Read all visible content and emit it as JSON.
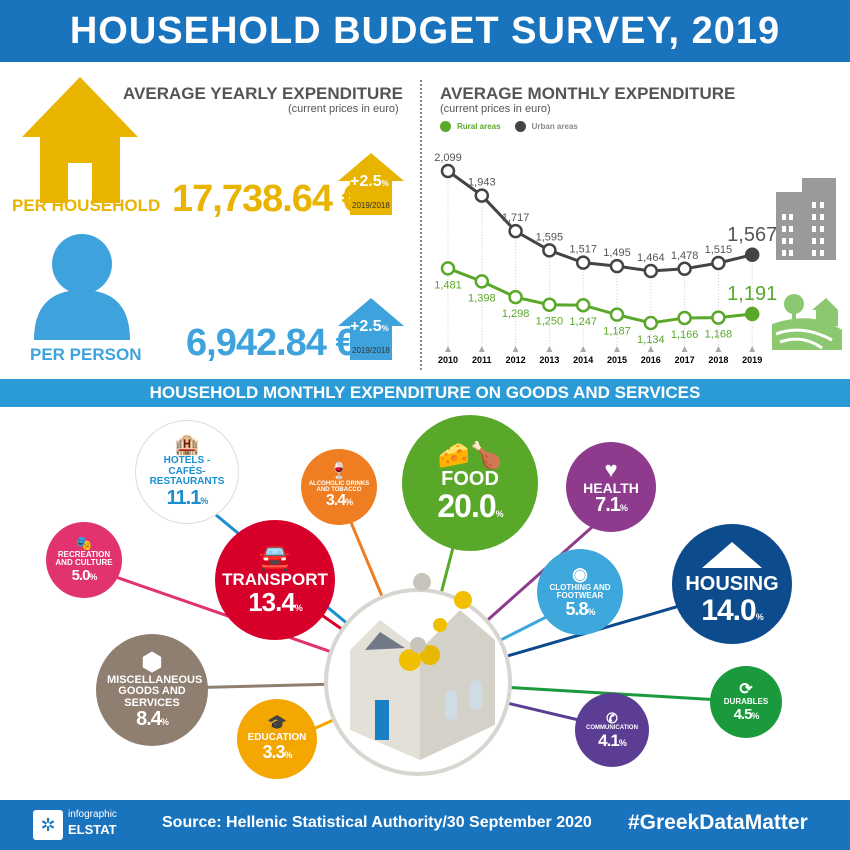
{
  "title": "HOUSEHOLD BUDGET SURVEY, 2019",
  "yearly": {
    "heading": "AVERAGE YEARLY EXPENDITURE",
    "sub": "(current prices in euro)",
    "household": {
      "label": "PER HOUSEHOLD",
      "value": "17,738.64 €",
      "change": "+2.5",
      "change_unit": "%",
      "period": "2019/2018"
    },
    "person": {
      "label": "PER PERSON",
      "value": "6,942.84 €",
      "change": "+2.5",
      "change_unit": "%",
      "period": "2019/2018"
    }
  },
  "chart_data": {
    "type": "line",
    "title": "AVERAGE MONTHLY EXPENDITURE",
    "subtitle": "(current prices in euro)",
    "x": [
      "2010",
      "2011",
      "2012",
      "2013",
      "2014",
      "2015",
      "2016",
      "2017",
      "2018",
      "2019"
    ],
    "series": [
      {
        "name": "Rural areas",
        "color": "#5aa82a",
        "values": [
          1481,
          1398,
          1298,
          1250,
          1247,
          1187,
          1134,
          1166,
          1168,
          1191
        ],
        "labels": [
          "1,481",
          "1,398",
          "1,298",
          "1,250",
          "1,247",
          "1,187",
          "1,134",
          "1,166",
          "1,168",
          "1,191"
        ]
      },
      {
        "name": "Urban areas",
        "color": "#444444",
        "values": [
          2099,
          1943,
          1717,
          1595,
          1517,
          1495,
          1464,
          1478,
          1515,
          1567
        ],
        "labels": [
          "2,099",
          "1,943",
          "1,717",
          "1,595",
          "1,517",
          "1,495",
          "1,464",
          "1,478",
          "1,515",
          "1,567"
        ]
      }
    ]
  },
  "section_title": "HOUSEHOLD MONTHLY EXPENDITURE ON GOODS AND SERVICES",
  "categories": {
    "hotels": {
      "label": "HOTELS -CAFÉS- RESTAURANTS",
      "pct": "11.1",
      "color": "#1a8fd0"
    },
    "alcohol": {
      "label": "ALCOHOLIC DRINKS AND TOBACCO",
      "pct": "3.4",
      "color": "#ef7d22"
    },
    "food": {
      "label": "FOOD",
      "pct": "20.0",
      "color": "#5aa82a"
    },
    "health": {
      "label": "HEALTH",
      "pct": "7.1",
      "color": "#8e3b8d"
    },
    "recreation": {
      "label": "RECREATION AND CULTURE",
      "pct": "5.0",
      "color": "#e0336f"
    },
    "transport": {
      "label": "TRANSPORT",
      "pct": "13.4",
      "color": "#d7002b"
    },
    "clothing": {
      "label": "CLOTHING AND FOOTWEAR",
      "pct": "5.8",
      "color": "#3ea8dc"
    },
    "housing": {
      "label": "HOUSING",
      "pct": "14.0",
      "color": "#0d4c8c"
    },
    "misc": {
      "label": "MISCELLANEOUS GOODS AND SERVICES",
      "pct": "8.4",
      "color": "#8f7f70"
    },
    "education": {
      "label": "EDUCATION",
      "pct": "3.3",
      "color": "#f3a700"
    },
    "communication": {
      "label": "COMMUNICATION",
      "pct": "4.1",
      "color": "#5b3e93"
    },
    "durables": {
      "label": "DURABLES",
      "pct": "4.5",
      "color": "#1a9a3d"
    }
  },
  "pct_sign": "%",
  "footer": {
    "logo_top": "infographic",
    "logo_bottom": "ELSTAT",
    "source": "Source: Hellenic Statistical Authority/30 September 2020",
    "hashtag": "#GreekDataMatter"
  }
}
